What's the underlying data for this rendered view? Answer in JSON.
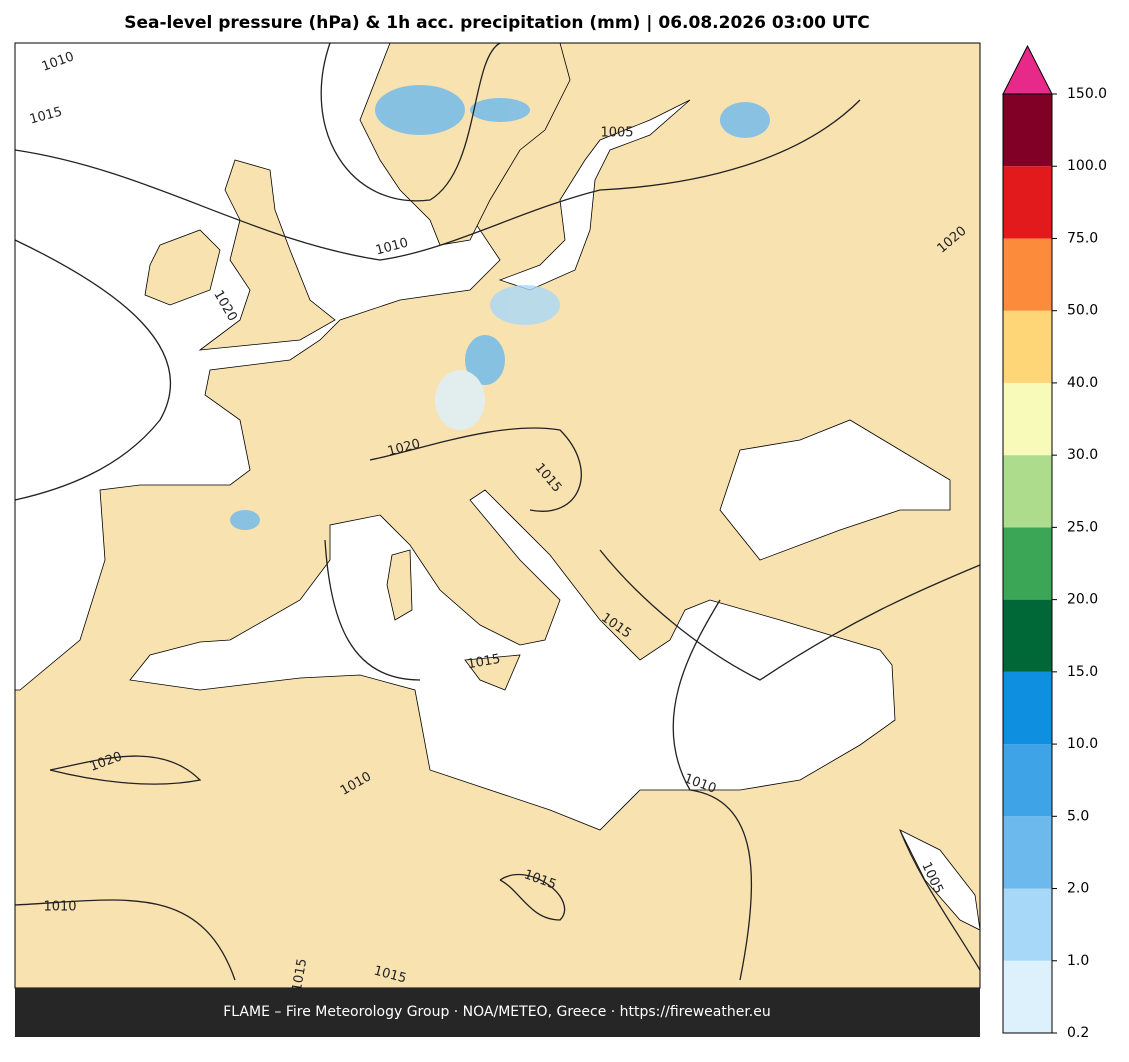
{
  "header": {
    "title": "Sea-level pressure (hPa) & 1h acc. precipitation (mm)  |  06.08.2026 03:00 UTC"
  },
  "map": {
    "contour_labels": [
      1010,
      1015,
      1005,
      1010,
      1020,
      1020,
      1020,
      1015,
      1015,
      1015,
      1020,
      1010,
      1010,
      1010,
      1005,
      1015,
      1015,
      1015
    ]
  },
  "colorbar": {
    "ticks": [
      {
        "value": 0.2,
        "label": "0.2"
      },
      {
        "value": 1,
        "label": "1.0"
      },
      {
        "value": 2,
        "label": "2.0"
      },
      {
        "value": 5,
        "label": "5.0"
      },
      {
        "value": 10,
        "label": "10.0"
      },
      {
        "value": 15,
        "label": "15.0"
      },
      {
        "value": 20,
        "label": "20.0"
      },
      {
        "value": 25,
        "label": "25.0"
      },
      {
        "value": 30,
        "label": "30.0"
      },
      {
        "value": 40,
        "label": "40.0"
      },
      {
        "value": 50,
        "label": "50.0"
      },
      {
        "value": 75,
        "label": "75.0"
      },
      {
        "value": 100,
        "label": "100.0"
      },
      {
        "value": 150,
        "label": "150.0"
      }
    ],
    "colors": [
      "#ddf1fd",
      "#a8d8f8",
      "#6cb9ee",
      "#3fa3e8",
      "#0f8fe0",
      "#006837",
      "#3ba655",
      "#addc8c",
      "#f7fab9",
      "#fed677",
      "#fd8b3c",
      "#e31a1c",
      "#800026"
    ],
    "extend_color": "#e7298a"
  },
  "footer": {
    "text": "FLAME – Fire Meteorology Group · NOA/METEO, Greece · https://fireweather.eu"
  }
}
